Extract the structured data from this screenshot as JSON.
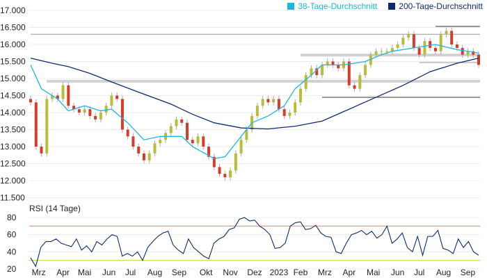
{
  "chart_data": [
    {
      "type": "candlestick",
      "title": "",
      "ylabel": "",
      "ylim": [
        11500,
        17000
      ],
      "yticks": [
        "17.000",
        "16.500",
        "16.000",
        "15.500",
        "15.000",
        "14.500",
        "14.000",
        "13.500",
        "13.000",
        "12.500",
        "12.000",
        "11.500"
      ],
      "ytick_values": [
        17000,
        16500,
        16000,
        15500,
        15000,
        14500,
        14000,
        13500,
        13000,
        12500,
        12000,
        11500
      ],
      "grid": true,
      "legend_position": "top-right",
      "legend": [
        {
          "label": "38-Tage-Durchschnitt",
          "color": "#1eb4e6"
        },
        {
          "label": "200-Tage-Durchschnitt",
          "color": "#0f2a6e"
        }
      ],
      "weekly_close": [
        14300,
        13000,
        12800,
        14400,
        14500,
        14400,
        14800,
        14200,
        14100,
        14000,
        14100,
        13900,
        13800,
        14000,
        14200,
        14500,
        14400,
        13500,
        13300,
        13000,
        12800,
        12600,
        12800,
        13100,
        13200,
        13400,
        13600,
        13800,
        13700,
        13200,
        13100,
        13300,
        13000,
        12700,
        12400,
        12200,
        12100,
        12300,
        12800,
        13200,
        13500,
        13900,
        14200,
        14400,
        14300,
        14400,
        14100,
        13900,
        14000,
        14300,
        14700,
        15100,
        15300,
        15100,
        15400,
        15500,
        15400,
        15300,
        15500,
        14800,
        14700,
        15100,
        15400,
        15700,
        15800,
        15800,
        15800,
        15900,
        16000,
        16200,
        16300,
        15900,
        15700,
        16100,
        15900,
        15800,
        16300,
        16400,
        16000,
        15900,
        15700,
        15800,
        15700,
        15400
      ],
      "ma38": [
        [
          0,
          15400
        ],
        [
          2,
          14700
        ],
        [
          5,
          14400
        ],
        [
          7,
          14050
        ],
        [
          10,
          14200
        ],
        [
          13,
          14050
        ],
        [
          15,
          14100
        ],
        [
          18,
          13700
        ],
        [
          21,
          13200
        ],
        [
          24,
          13300
        ],
        [
          28,
          13300
        ],
        [
          30,
          13000
        ],
        [
          34,
          12650
        ],
        [
          36,
          12700
        ],
        [
          39,
          13300
        ],
        [
          41,
          13700
        ],
        [
          44,
          13900
        ],
        [
          47,
          14200
        ],
        [
          49,
          14700
        ],
        [
          52,
          15100
        ],
        [
          54,
          15400
        ],
        [
          58,
          15400
        ],
        [
          62,
          15500
        ],
        [
          65,
          15700
        ],
        [
          67,
          15800
        ],
        [
          71,
          15900
        ],
        [
          75,
          16000
        ],
        [
          79,
          15850
        ],
        [
          83,
          15750
        ]
      ],
      "ma200": [
        [
          0,
          15600
        ],
        [
          4,
          15450
        ],
        [
          7,
          15350
        ],
        [
          11,
          15150
        ],
        [
          15,
          14900
        ],
        [
          20,
          14600
        ],
        [
          26,
          14250
        ],
        [
          30,
          13950
        ],
        [
          34,
          13700
        ],
        [
          39,
          13550
        ],
        [
          44,
          13520
        ],
        [
          49,
          13600
        ],
        [
          54,
          13750
        ],
        [
          59,
          14100
        ],
        [
          64,
          14450
        ],
        [
          69,
          14800
        ],
        [
          74,
          15200
        ],
        [
          79,
          15450
        ],
        [
          83,
          15600
        ]
      ],
      "levels": [
        {
          "value": 16300,
          "from": 0,
          "to": 83,
          "style": "thin"
        },
        {
          "value": 16530,
          "from": 75,
          "to": 83,
          "style": "thin-dark"
        },
        {
          "value": 14920,
          "from": 3,
          "to": 83,
          "style": "thick"
        },
        {
          "value": 15690,
          "from": 50,
          "to": 83,
          "style": "thick"
        },
        {
          "value": 15470,
          "from": 72,
          "to": 83,
          "style": "thin"
        },
        {
          "value": 14450,
          "from": 54,
          "to": 83,
          "style": "thin-dark"
        }
      ]
    },
    {
      "type": "line",
      "title": "RSI (14 Tage)",
      "ylim": [
        20,
        85
      ],
      "yticks": [
        "80",
        "60",
        "40",
        "20"
      ],
      "ytick_values": [
        80,
        60,
        40,
        20
      ],
      "overbought": 70,
      "oversold": 30,
      "overbought_color": "#f4a0a0",
      "oversold_color": "#d4e157",
      "values": [
        33,
        23,
        45,
        52,
        52,
        55,
        50,
        48,
        46,
        55,
        42,
        47,
        40,
        52,
        48,
        55,
        60,
        58,
        35,
        38,
        35,
        40,
        30,
        45,
        52,
        58,
        62,
        64,
        48,
        42,
        38,
        55,
        45,
        40,
        35,
        32,
        50,
        55,
        58,
        66,
        68,
        78,
        80,
        76,
        77,
        70,
        66,
        60,
        44,
        45,
        50,
        70,
        74,
        75,
        66,
        67,
        71,
        62,
        58,
        57,
        40,
        38,
        50,
        60,
        62,
        65,
        60,
        64,
        56,
        60,
        70,
        50,
        55,
        62,
        45,
        40,
        58,
        36,
        58,
        58,
        65,
        44,
        42,
        38,
        55,
        45,
        52,
        40,
        36
      ]
    }
  ],
  "x_axis": {
    "labels": [
      "Mrz",
      "Apr",
      "Mai",
      "Jun",
      "Jul",
      "Aug",
      "Sep",
      "Okt",
      "Nov",
      "Dez",
      "2023",
      "Feb",
      "Mrz",
      "Apr",
      "Mai",
      "Jun",
      "Jul",
      "Aug",
      "Sep"
    ],
    "positions_weeks": [
      1.5,
      6,
      10,
      14.5,
      18.5,
      23,
      27.5,
      32.5,
      37,
      41.5,
      46,
      50,
      54.5,
      59,
      63.5,
      68,
      72,
      76.5,
      81
    ]
  }
}
